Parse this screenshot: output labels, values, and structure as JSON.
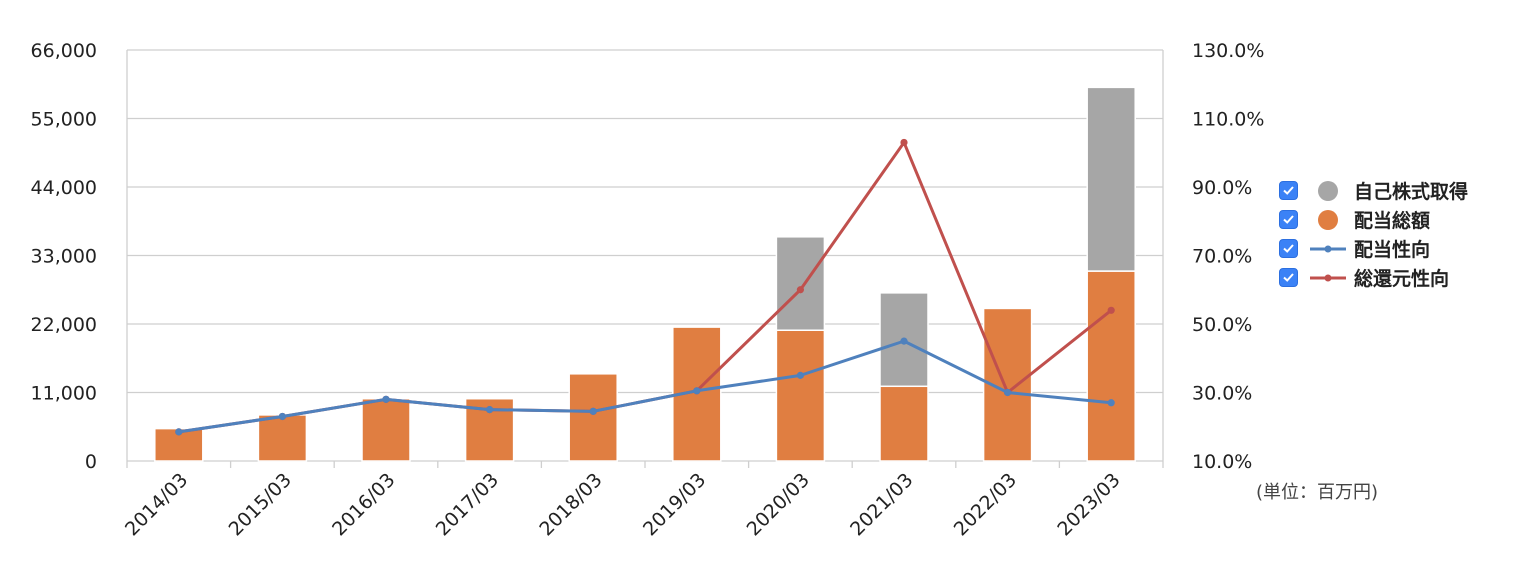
{
  "chart_data": {
    "type": "bar",
    "categories": [
      "2014/03",
      "2015/03",
      "2016/03",
      "2017/03",
      "2018/03",
      "2019/03",
      "2020/03",
      "2021/03",
      "2022/03",
      "2023/03"
    ],
    "bar_series": [
      {
        "name": "配当総額",
        "color": "#e07e41",
        "values": [
          5200,
          7400,
          10000,
          10000,
          14000,
          21500,
          21000,
          12000,
          24500,
          30500
        ]
      },
      {
        "name": "自己株式取得",
        "color": "#a6a6a6",
        "values": [
          0,
          0,
          0,
          0,
          0,
          0,
          15000,
          15000,
          0,
          29500
        ]
      }
    ],
    "line_series": [
      {
        "name": "配当性向",
        "color": "#4f81bd",
        "values": [
          18.5,
          23.0,
          28.0,
          25.0,
          24.5,
          30.5,
          35.0,
          45.0,
          30.0,
          27.0
        ]
      },
      {
        "name": "総還元性向",
        "color": "#c0504d",
        "values": [
          18.5,
          23.0,
          28.0,
          25.0,
          24.5,
          30.5,
          60.0,
          103.0,
          30.0,
          54.0
        ]
      }
    ],
    "y_left": {
      "min": 0,
      "max": 66000,
      "ticks": [
        "0",
        "11,000",
        "22,000",
        "33,000",
        "44,000",
        "55,000",
        "66,000"
      ],
      "tick_values": [
        0,
        11000,
        22000,
        33000,
        44000,
        55000,
        66000
      ]
    },
    "y_right": {
      "min": 10,
      "max": 130,
      "ticks": [
        "10.0%",
        "30.0%",
        "50.0%",
        "70.0%",
        "90.0%",
        "110.0%",
        "130.0%"
      ],
      "tick_values": [
        10,
        30,
        50,
        70,
        90,
        110,
        130
      ]
    },
    "grid": true,
    "legend_position": "right"
  },
  "legend": {
    "items": [
      {
        "label": "自己株式取得",
        "kind": "dot",
        "color": "#a6a6a6",
        "checked": true
      },
      {
        "label": "配当総額",
        "kind": "dot",
        "color": "#e07e41",
        "checked": true
      },
      {
        "label": "配当性向",
        "kind": "line",
        "color": "#4f81bd",
        "checked": true
      },
      {
        "label": "総還元性向",
        "kind": "line",
        "color": "#c0504d",
        "checked": true
      }
    ]
  },
  "unit_label": "(単位：百万円)"
}
